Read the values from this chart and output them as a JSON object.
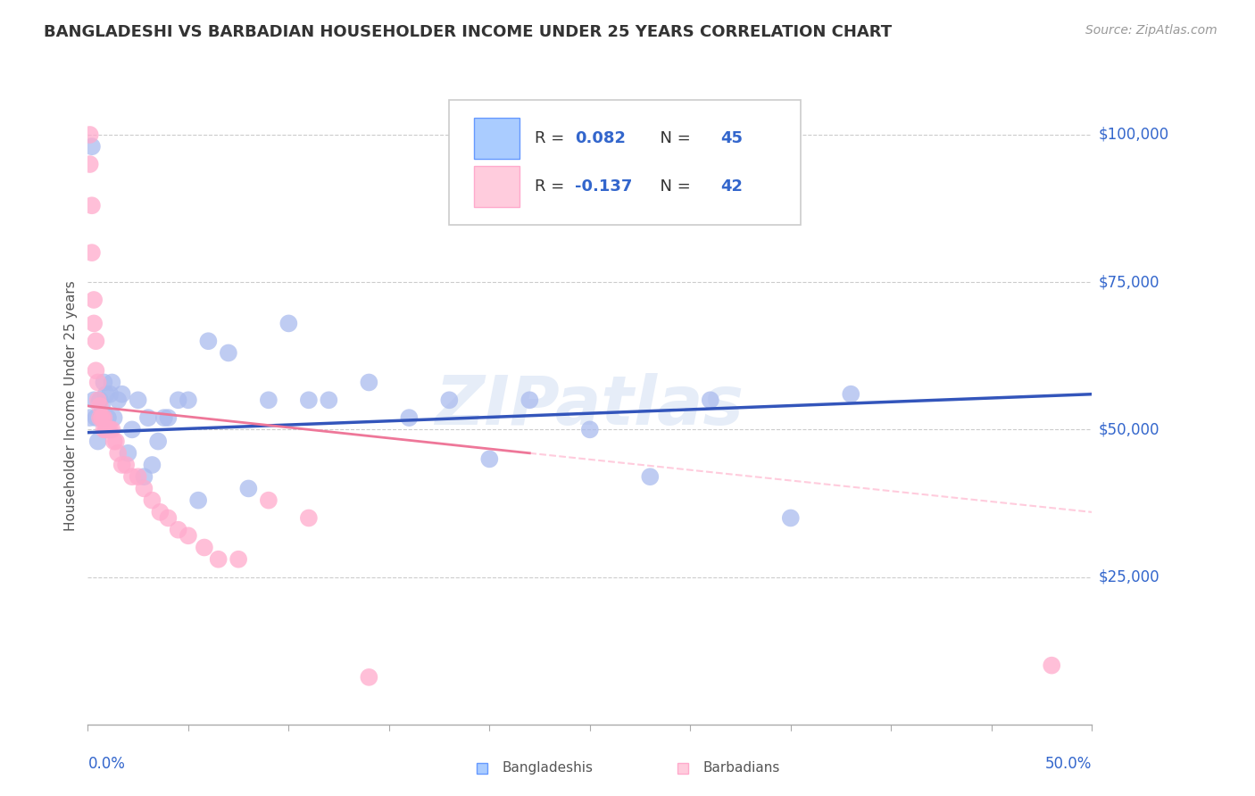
{
  "title": "BANGLADESHI VS BARBADIAN HOUSEHOLDER INCOME UNDER 25 YEARS CORRELATION CHART",
  "source": "Source: ZipAtlas.com",
  "ylabel": "Householder Income Under 25 years",
  "x_range": [
    0.0,
    0.5
  ],
  "y_range": [
    0,
    108000
  ],
  "bangladeshi_color": "#aabbee",
  "barbadian_color": "#ffaacc",
  "trendline_bangladeshi_color": "#3355bb",
  "trendline_barbadian_color": "#ee7799",
  "trendline_barbadian_dash_color": "#ffccdd",
  "watermark": "ZIPatlas",
  "legend_r1": "R =  0.082",
  "legend_n1": "N = 45",
  "legend_r2": "R = -0.137",
  "legend_n2": "N = 42",
  "legend_text_color": "#3366cc",
  "legend_r_color": "#333333",
  "bangladeshi_x": [
    0.001,
    0.002,
    0.003,
    0.004,
    0.005,
    0.006,
    0.007,
    0.007,
    0.008,
    0.009,
    0.01,
    0.011,
    0.012,
    0.013,
    0.015,
    0.017,
    0.02,
    0.022,
    0.025,
    0.028,
    0.03,
    0.032,
    0.035,
    0.038,
    0.04,
    0.045,
    0.05,
    0.055,
    0.06,
    0.07,
    0.08,
    0.09,
    0.1,
    0.11,
    0.12,
    0.14,
    0.16,
    0.18,
    0.2,
    0.22,
    0.25,
    0.28,
    0.31,
    0.35,
    0.38
  ],
  "bangladeshi_y": [
    52000,
    98000,
    55000,
    52000,
    48000,
    55000,
    54000,
    52000,
    58000,
    56000,
    52000,
    56000,
    58000,
    52000,
    55000,
    56000,
    46000,
    50000,
    55000,
    42000,
    52000,
    44000,
    48000,
    52000,
    52000,
    55000,
    55000,
    38000,
    65000,
    63000,
    40000,
    55000,
    68000,
    55000,
    55000,
    58000,
    52000,
    55000,
    45000,
    55000,
    50000,
    42000,
    55000,
    35000,
    56000
  ],
  "barbadian_x": [
    0.001,
    0.001,
    0.002,
    0.002,
    0.003,
    0.003,
    0.004,
    0.004,
    0.005,
    0.005,
    0.006,
    0.006,
    0.007,
    0.007,
    0.008,
    0.008,
    0.009,
    0.009,
    0.01,
    0.01,
    0.011,
    0.012,
    0.013,
    0.014,
    0.015,
    0.017,
    0.019,
    0.022,
    0.025,
    0.028,
    0.032,
    0.036,
    0.04,
    0.045,
    0.05,
    0.058,
    0.065,
    0.075,
    0.09,
    0.11,
    0.14,
    0.48
  ],
  "barbadian_y": [
    100000,
    95000,
    88000,
    80000,
    72000,
    68000,
    65000,
    60000,
    58000,
    55000,
    54000,
    52000,
    52000,
    52000,
    52000,
    50000,
    50000,
    50000,
    50000,
    50000,
    50000,
    50000,
    48000,
    48000,
    46000,
    44000,
    44000,
    42000,
    42000,
    40000,
    38000,
    36000,
    35000,
    33000,
    32000,
    30000,
    28000,
    28000,
    38000,
    35000,
    8000,
    10000
  ],
  "trendline_b_x0": 0.0,
  "trendline_b_y0": 49500,
  "trendline_b_x1": 0.5,
  "trendline_b_y1": 56000,
  "trendline_bar_x0": 0.0,
  "trendline_bar_y0": 54000,
  "trendline_bar_x1": 0.22,
  "trendline_bar_y1": 46000,
  "trendline_dash_x0": 0.22,
  "trendline_dash_y0": 46000,
  "trendline_dash_x1": 0.5,
  "trendline_dash_y1": 36000
}
